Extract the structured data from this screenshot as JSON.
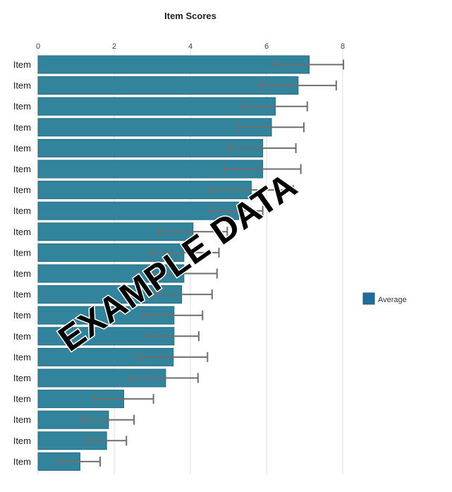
{
  "chart_data": {
    "type": "bar",
    "orientation": "horizontal",
    "title": "Item Scores",
    "xlabel": "",
    "ylabel": "",
    "xlim": [
      0,
      8
    ],
    "x_ticks": [
      "0",
      "2",
      "4",
      "6",
      "8"
    ],
    "grid": true,
    "legend_position": "right",
    "categories": [
      "Item",
      "Item",
      "Item",
      "Item",
      "Item",
      "Item",
      "Item",
      "Item",
      "Item",
      "Item",
      "Item",
      "Item",
      "Item",
      "Item",
      "Item",
      "Item",
      "Item",
      "Item",
      "Item",
      "Item"
    ],
    "series": [
      {
        "name": "Average",
        "color": "#31849b",
        "values": [
          7.12,
          6.83,
          6.23,
          6.13,
          5.9,
          5.9,
          5.6,
          5.27,
          4.07,
          3.83,
          3.83,
          3.77,
          3.57,
          3.57,
          3.55,
          3.35,
          2.25,
          1.85,
          1.8,
          1.1
        ],
        "error_low": [
          6.22,
          5.83,
          5.4,
          5.28,
          5.03,
          4.9,
          4.5,
          4.55,
          3.17,
          2.95,
          2.95,
          2.97,
          2.77,
          2.87,
          2.65,
          2.45,
          1.48,
          1.17,
          1.3,
          0.55
        ],
        "error_high": [
          8.02,
          7.83,
          7.07,
          6.98,
          6.77,
          6.9,
          6.7,
          5.9,
          4.97,
          4.75,
          4.7,
          4.57,
          4.32,
          4.22,
          4.45,
          4.2,
          3.03,
          2.52,
          2.32,
          1.63
        ]
      }
    ],
    "watermark": "EXAMPLE DATA",
    "colors": {
      "bar_fill": "#31849b",
      "bar_stroke": "#236a80",
      "legend_swatch": "#1f6e99",
      "error_bar": "#6e6e6e",
      "grid": "#dcdcdc"
    }
  }
}
